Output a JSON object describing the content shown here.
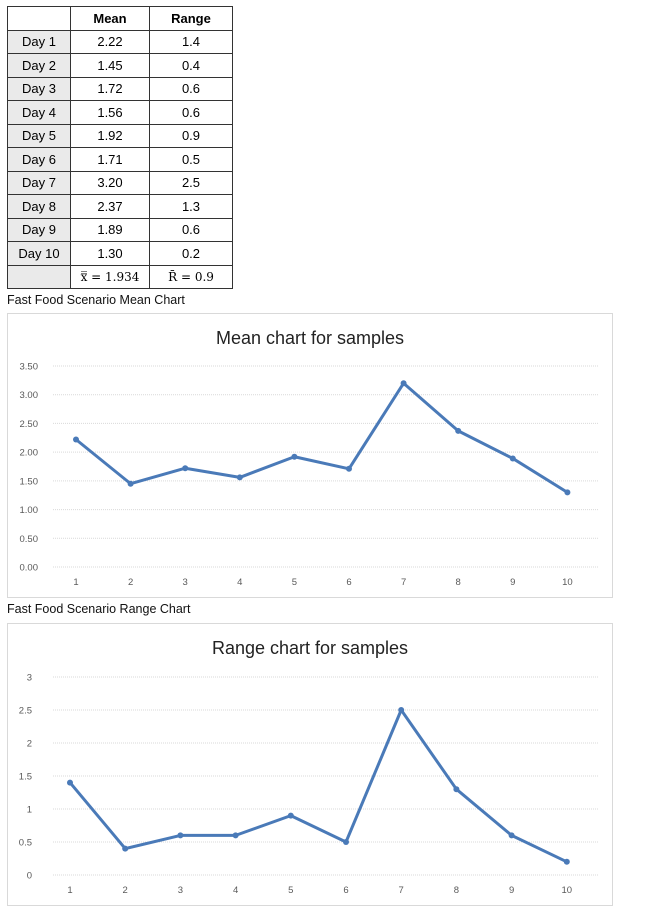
{
  "table": {
    "headers": [
      "",
      "Mean",
      "Range"
    ],
    "rows": [
      {
        "day": "Day 1",
        "mean": "2.22",
        "range": "1.4"
      },
      {
        "day": "Day 2",
        "mean": "1.45",
        "range": "0.4"
      },
      {
        "day": "Day 3",
        "mean": "1.72",
        "range": "0.6"
      },
      {
        "day": "Day 4",
        "mean": "1.56",
        "range": "0.6"
      },
      {
        "day": "Day 5",
        "mean": "1.92",
        "range": "0.9"
      },
      {
        "day": "Day 6",
        "mean": "1.71",
        "range": "0.5"
      },
      {
        "day": "Day 7",
        "mean": "3.20",
        "range": "2.5"
      },
      {
        "day": "Day 8",
        "mean": "2.37",
        "range": "1.3"
      },
      {
        "day": "Day 9",
        "mean": "1.89",
        "range": "0.6"
      },
      {
        "day": "Day 10",
        "mean": "1.30",
        "range": "0.2"
      }
    ],
    "summary_mean": "x̿ = 1.934",
    "summary_range": "R̄ = 0.9"
  },
  "captions": {
    "mean_chart": "Fast Food Scenario Mean Chart",
    "range_chart": "Fast Food Scenario Range Chart"
  },
  "colors": {
    "line": "#4a7ab8",
    "grid": "#d9d9d9",
    "axis_text": "#595959"
  },
  "chart_data": [
    {
      "type": "line",
      "title": "Mean chart for samples",
      "xlabel": "",
      "ylabel": "",
      "x": [
        1,
        2,
        3,
        4,
        5,
        6,
        7,
        8,
        9,
        10
      ],
      "series": [
        {
          "values": [
            2.22,
            1.45,
            1.72,
            1.56,
            1.92,
            1.71,
            3.2,
            2.37,
            1.89,
            1.3
          ]
        }
      ],
      "ylim": [
        0,
        3.5
      ],
      "yticks": [
        "0.00",
        "0.50",
        "1.00",
        "1.50",
        "2.00",
        "2.50",
        "3.00",
        "3.50"
      ],
      "xticks": [
        "1",
        "2",
        "3",
        "4",
        "5",
        "6",
        "7",
        "8",
        "9",
        "10"
      ],
      "grid": true
    },
    {
      "type": "line",
      "title": "Range chart for samples",
      "xlabel": "",
      "ylabel": "",
      "x": [
        1,
        2,
        3,
        4,
        5,
        6,
        7,
        8,
        9,
        10
      ],
      "series": [
        {
          "values": [
            1.4,
            0.4,
            0.6,
            0.6,
            0.9,
            0.5,
            2.5,
            1.3,
            0.6,
            0.2
          ]
        }
      ],
      "ylim": [
        0,
        3
      ],
      "yticks": [
        "0",
        "0.5",
        "1",
        "1.5",
        "2",
        "2.5",
        "3"
      ],
      "xticks": [
        "1",
        "2",
        "3",
        "4",
        "5",
        "6",
        "7",
        "8",
        "9",
        "10"
      ],
      "grid": true
    }
  ]
}
